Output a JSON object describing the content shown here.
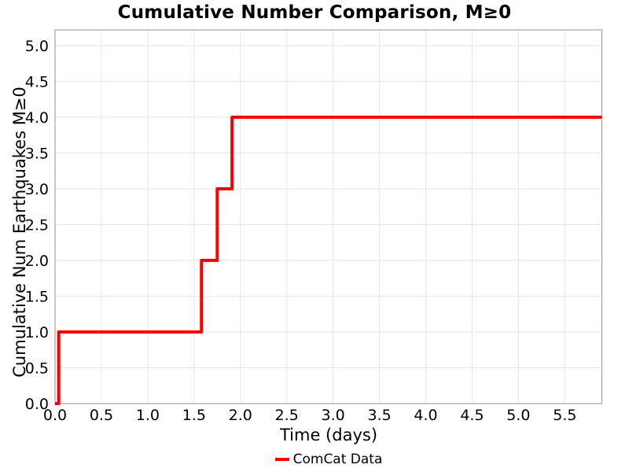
{
  "header": {
    "title": "Cumulative Number Comparison, M≥0"
  },
  "axes": {
    "xlabel": "Time (days)",
    "ylabel": "Cumulative Num Earthquakes M≥0"
  },
  "legend": {
    "items": [
      {
        "label": "ComCat Data",
        "color": "#ff0000"
      }
    ]
  },
  "colors": {
    "line": "#ff0000",
    "grid": "#e6e6e6",
    "spine": "#a3a3a3",
    "text": "#000000",
    "background": "#ffffff"
  },
  "chart_data": {
    "type": "line",
    "step_mode": "post",
    "title": "Cumulative Number Comparison, M≥0",
    "xlabel": "Time (days)",
    "ylabel": "Cumulative Num Earthquakes M≥0",
    "xlim": [
      0,
      5.9
    ],
    "ylim": [
      0,
      5.22
    ],
    "grid": true,
    "legend_position": "below x-axis, centered",
    "xticks": {
      "values": [
        0,
        0.5,
        1,
        1.5,
        2,
        2.5,
        3,
        3.5,
        4,
        4.5,
        5,
        5.5
      ],
      "labels": [
        "0.0",
        "0.5",
        "1.0",
        "1.5",
        "2.0",
        "2.5",
        "3.0",
        "3.5",
        "4.0",
        "4.5",
        "5.0",
        "5.5"
      ]
    },
    "yticks": {
      "values": [
        0,
        0.5,
        1,
        1.5,
        2,
        2.5,
        3,
        3.5,
        4,
        4.5,
        5
      ],
      "labels": [
        "0.0",
        "0.5",
        "1.0",
        "1.5",
        "2.0",
        "2.5",
        "3.0",
        "3.5",
        "4.0",
        "4.5",
        "5.0"
      ]
    },
    "series": [
      {
        "name": "ComCat Data",
        "color": "#ff0000",
        "line_width": 4,
        "event_times_days": [
          0.04,
          1.58,
          1.75,
          1.91
        ],
        "cumulative_counts": [
          1,
          2,
          3,
          4
        ],
        "x": [
          0,
          0.04,
          0.04,
          1.58,
          1.58,
          1.75,
          1.75,
          1.91,
          1.91,
          5.9
        ],
        "y": [
          0,
          0,
          1,
          1,
          2,
          2,
          3,
          3,
          4,
          4
        ]
      }
    ]
  }
}
